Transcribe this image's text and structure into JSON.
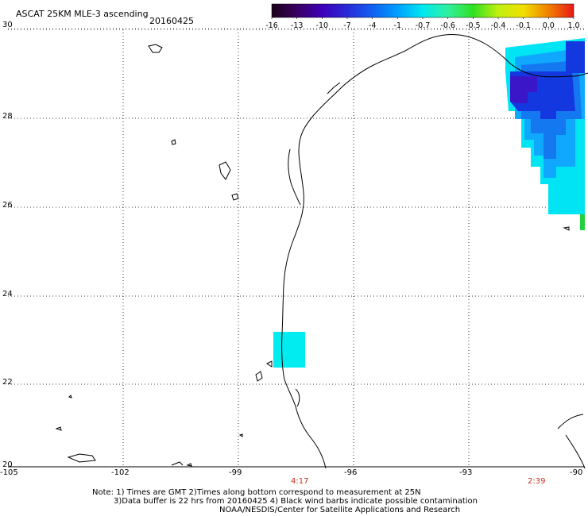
{
  "header": {
    "title": "ASCAT 25KM MLE-3 ascending",
    "date": "20160425"
  },
  "colorbar": {
    "labels": [
      "-16",
      "-13",
      "-10",
      "-7",
      "-4",
      "-1",
      "-0.7",
      "-0.6",
      "-0.5",
      "-0.4",
      "-0.1",
      "0.0",
      "1.0"
    ],
    "colors": [
      "#1a0018",
      "#3a0060",
      "#3c00b8",
      "#2a2ad8",
      "#1060f0",
      "#00a0ff",
      "#00e8f0",
      "#30f0a0",
      "#30e020",
      "#c0f010",
      "#f0e000",
      "#f08000",
      "#e81818"
    ]
  },
  "axes": {
    "y_labels": [
      "30",
      "28",
      "26",
      "24",
      "22",
      "20"
    ],
    "x_labels": [
      "-105",
      "-102",
      "-99",
      "-96",
      "-93",
      "-90"
    ]
  },
  "times": [
    "4:17",
    "2:39"
  ],
  "notes": {
    "line1": "Note: 1) Times are GMT 2)Times along bottom correspond to measurement at 25N",
    "line2": "3)Data buffer is 22 hrs from 20160425 4) Black wind barbs indicate possible contamination",
    "line3": "NOAA/NESDIS/Center for Satellite Applications and Research"
  },
  "colors": {
    "deep_blue": "#3a16c8",
    "blue": "#1438e0",
    "mid_blue": "#1478f0",
    "light_blue": "#10a8ff",
    "cyan": "#00e8f4",
    "green": "#22d040"
  }
}
